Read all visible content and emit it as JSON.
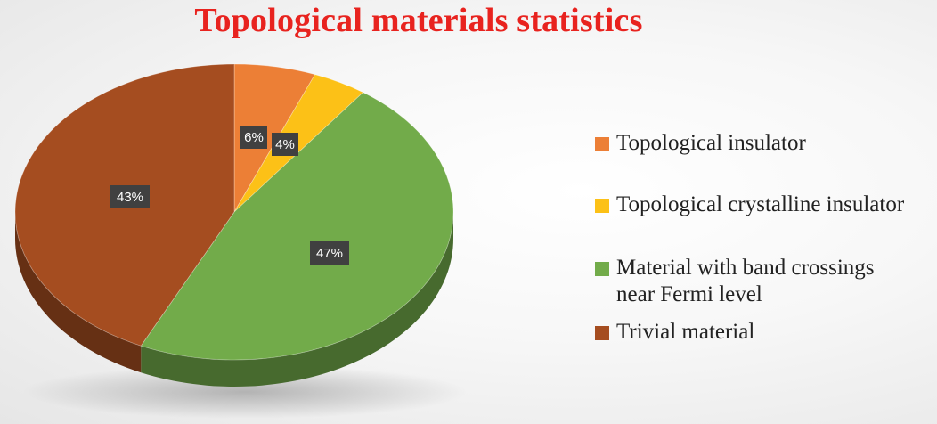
{
  "chart_data": {
    "type": "pie",
    "title": "Topological materials statistics",
    "series": [
      {
        "name": "Topological insulator",
        "value": 6,
        "label": "6%",
        "color": "#ec7f36"
      },
      {
        "name": "Topological crystalline insulator",
        "value": 4,
        "label": "4%",
        "color": "#fcc117"
      },
      {
        "name": "Material with band crossings\nnear Fermi level",
        "value": 47,
        "label": "47%",
        "color": "#72ab4a"
      },
      {
        "name": "Trivial material",
        "value": 43,
        "label": "43%",
        "color": "#a54d20"
      }
    ],
    "legend_position": "right",
    "style": "3d-pie"
  }
}
